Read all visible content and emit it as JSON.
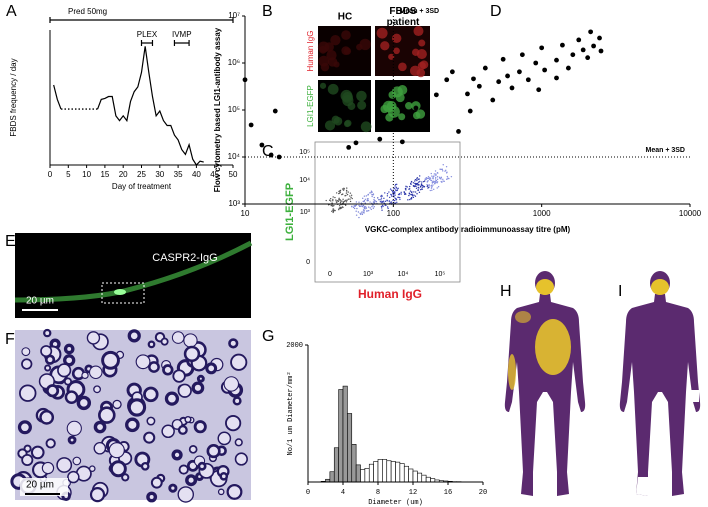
{
  "panel_labels": [
    "A",
    "B",
    "C",
    "D",
    "E",
    "F",
    "G",
    "H",
    "I"
  ],
  "chart_data": [
    {
      "type": "line",
      "xlabel": "Day of treatment",
      "ylabel": "FBDS frequency / day",
      "x": [
        1,
        2,
        3,
        8,
        13,
        14,
        15,
        16,
        17,
        18,
        19,
        20,
        21,
        22,
        23,
        24,
        25,
        26,
        27,
        28,
        29,
        30,
        31,
        32,
        33,
        34,
        35,
        36,
        37,
        38,
        39,
        40,
        41,
        42
      ],
      "series": [
        {
          "color": "#000000",
          "dash": false,
          "values": [
            83,
            68,
            58,
            null,
            58,
            68,
            69,
            71,
            71,
            51,
            46,
            51,
            46,
            66,
            76,
            81,
            96,
            123,
            96,
            71,
            51,
            56,
            46,
            41,
            41,
            31,
            26,
            16,
            11,
            21,
            6,
            0,
            4,
            3
          ]
        },
        {
          "color": "#000000",
          "dash": true,
          "values": [
            null,
            null,
            58,
            58,
            58,
            null,
            null,
            null,
            null,
            null,
            null,
            null,
            null,
            null,
            null,
            null,
            null,
            null,
            null,
            null,
            null,
            null,
            null,
            null,
            null,
            null,
            null,
            null,
            null,
            null,
            null,
            null,
            null,
            null
          ]
        }
      ],
      "xlim": [
        0,
        50
      ],
      "xticks": [
        0,
        5,
        10,
        15,
        20,
        25,
        30,
        35,
        40,
        45,
        50
      ],
      "ylim": [
        0,
        140
      ],
      "annotations": [
        {
          "text": "Pred 50mg",
          "x0": 0,
          "x1": 50
        },
        {
          "text": "PLEX",
          "x0": 25,
          "x1": 28
        },
        {
          "text": "IVMP",
          "x0": 34,
          "x1": 38
        }
      ]
    },
    {
      "type": "scatter",
      "xlabel": "VGKC-complex antibody radioimmunoassay titre (pM)",
      "ylabel": "Flow cytometry based LGI1-antibody assay",
      "log_x": true,
      "log_y": true,
      "color": "#000000",
      "x": [
        10,
        11,
        13,
        15,
        16,
        17,
        36,
        40,
        50,
        56,
        79,
        81,
        115,
        142,
        195,
        229,
        250,
        275,
        316,
        330,
        347,
        380,
        417,
        468,
        513,
        550,
        589,
        631,
        708,
        741,
        813,
        912,
        1000,
        1047,
        1259,
        1380,
        1514,
        1622,
        1778,
        1905,
        2042,
        2138,
        2239,
        2455,
        2512,
        1259,
        955
      ],
      "values": [
        440000,
        48000,
        18000,
        11000,
        95000,
        10000,
        68000,
        170000,
        16000,
        20000,
        140000,
        24000,
        21000,
        110000,
        210000,
        440000,
        650000,
        35000,
        220000,
        95000,
        460000,
        320000,
        780000,
        163000,
        400000,
        1200000,
        530000,
        295000,
        650000,
        1500000,
        440000,
        1000000,
        2100000,
        710000,
        1150000,
        2400000,
        780000,
        1500000,
        3100000,
        1900000,
        1300000,
        4600000,
        2300000,
        3400000,
        1800000,
        480000,
        270000
      ],
      "xlim": [
        10,
        10000
      ],
      "xticks": [
        10,
        100,
        1000,
        10000
      ],
      "ylim": [
        1000,
        10000000
      ],
      "yticks": [
        {
          "value": 1000,
          "label": "10³"
        },
        {
          "value": 10000,
          "label": "10⁴"
        },
        {
          "value": 100000,
          "label": "10⁵"
        },
        {
          "value": 1000000,
          "label": "10⁶"
        },
        {
          "value": 10000000,
          "label": "10⁷"
        }
      ],
      "reference_lines": [
        {
          "axis": "x",
          "value": 100,
          "label": "Mean + 3SD"
        },
        {
          "axis": "y",
          "value": 10000,
          "label": "Mean + 3SD"
        }
      ]
    },
    {
      "type": "histogram",
      "xlabel": "Diameter (um)",
      "ylabel": "No/1 um Diameter/mm²",
      "bins": [
        1.5,
        2,
        2.5,
        3,
        3.5,
        4,
        4.5,
        5,
        5.5,
        6,
        6.5,
        7,
        7.5,
        8,
        8.5,
        9,
        9.5,
        10,
        10.5,
        11,
        11.5,
        12,
        12.5,
        13,
        13.5,
        14,
        14.5,
        15,
        15.5,
        16,
        16.5,
        17,
        17.5
      ],
      "values": [
        10,
        40,
        150,
        500,
        1350,
        1400,
        1000,
        550,
        250,
        180,
        200,
        260,
        300,
        330,
        330,
        310,
        300,
        290,
        270,
        230,
        190,
        160,
        130,
        100,
        70,
        50,
        30,
        20,
        15,
        10,
        5,
        5
      ],
      "colors": [
        "#999999",
        "#999999",
        "#999999",
        "#999999",
        "#999999",
        "#999999",
        "#999999",
        "#999999",
        "#999999",
        "#ffffff",
        "#ffffff",
        "#ffffff",
        "#ffffff",
        "#ffffff",
        "#ffffff",
        "#ffffff",
        "#ffffff",
        "#ffffff",
        "#ffffff",
        "#ffffff",
        "#ffffff",
        "#ffffff",
        "#ffffff",
        "#ffffff",
        "#ffffff",
        "#ffffff",
        "#ffffff",
        "#ffffff",
        "#ffffff",
        "#ffffff",
        "#ffffff",
        "#ffffff"
      ],
      "xlim": [
        0,
        20
      ],
      "xticks": [
        0,
        4,
        8,
        12,
        16,
        20
      ],
      "ylim": [
        0,
        2000
      ],
      "yticks": [
        2000
      ]
    }
  ],
  "panel_b": {
    "columns": [
      "HC",
      "FBDS patient"
    ],
    "rows": [
      "Human IgG",
      "LGI1-EGFP"
    ]
  },
  "panel_c": {
    "x_label": "Human IgG",
    "y_label": "LGI1-EGFP",
    "xticks": [
      "0",
      "10³",
      "10⁴",
      "10⁵"
    ],
    "yticks": [
      "0",
      "10³",
      "10⁴",
      "10⁵"
    ]
  },
  "panel_e": {
    "label": "CASPR2-IgG",
    "scale_bar": "20 µm"
  },
  "panel_f": {
    "scale_bar": "20 µm"
  }
}
